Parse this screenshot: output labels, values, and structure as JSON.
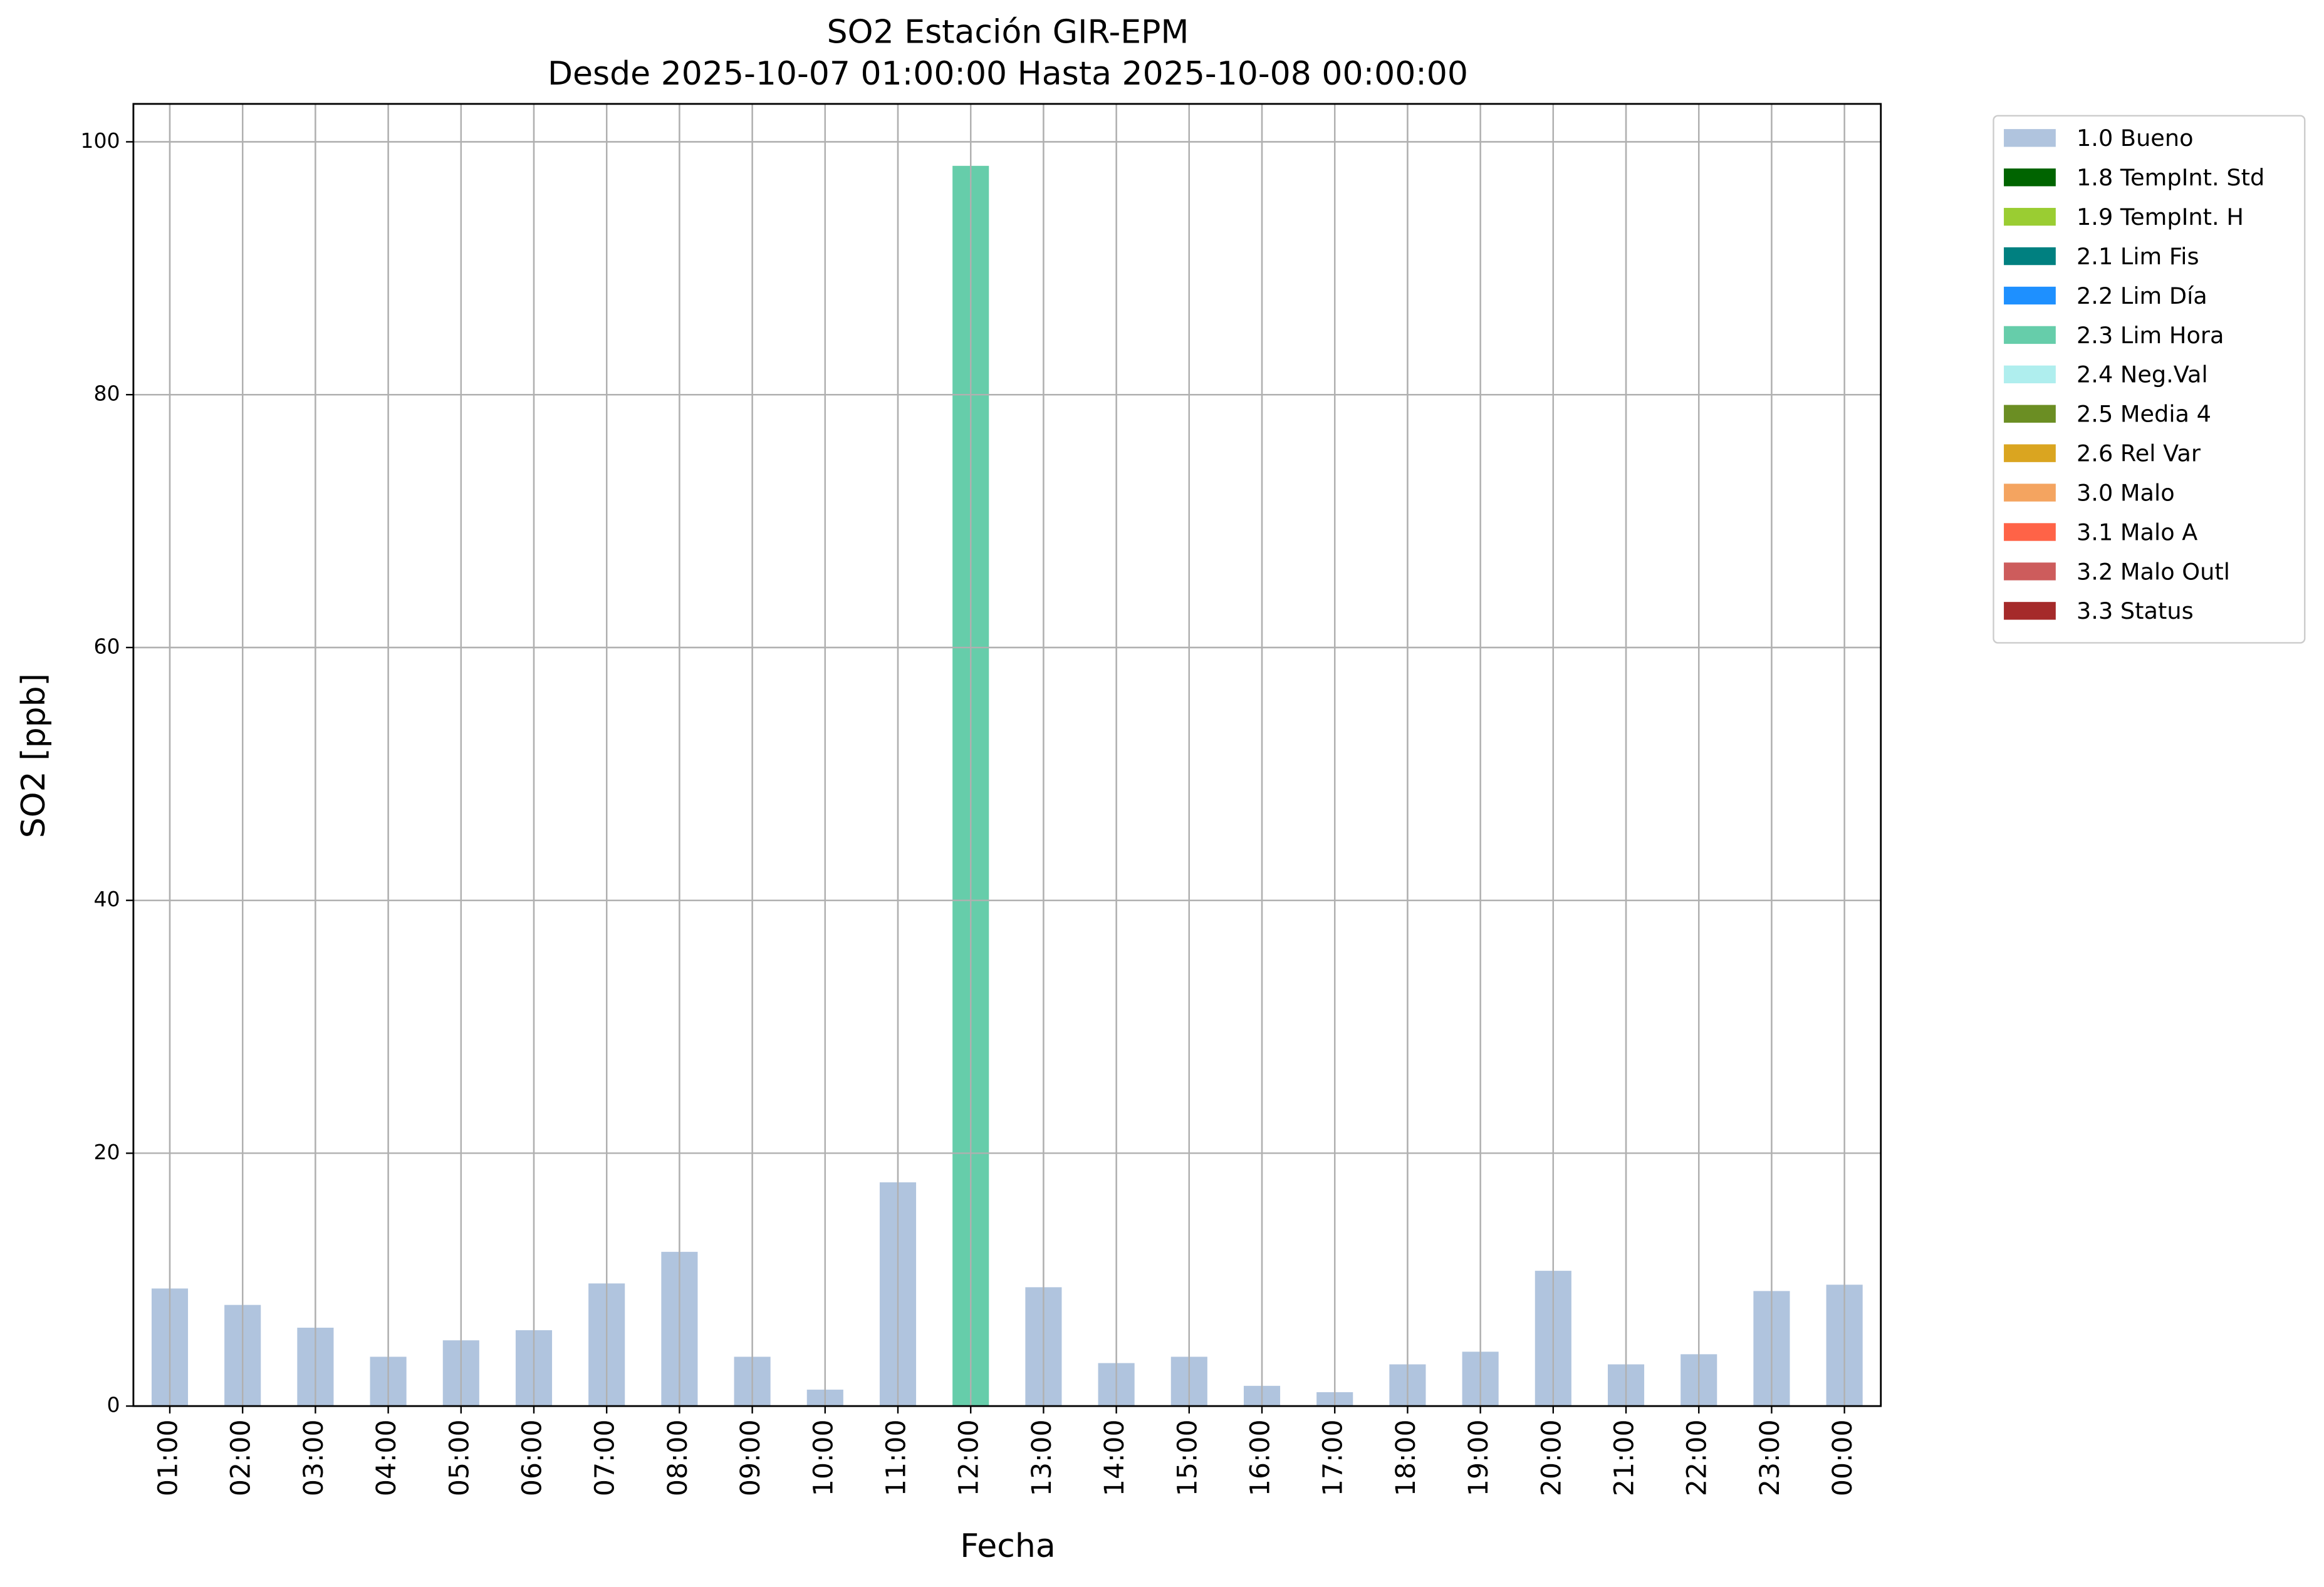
{
  "chart_data": {
    "type": "stacked_bar",
    "title": "SO2 Estación GIR-EPM",
    "subtitle": "Desde 2025-10-07 01:00:00 Hasta 2025-10-08 00:00:00",
    "x_label": "Fecha",
    "y_label": "SO2 [ppb]",
    "categories": [
      "01:00",
      "02:00",
      "03:00",
      "04:00",
      "05:00",
      "06:00",
      "07:00",
      "08:00",
      "09:00",
      "10:00",
      "11:00",
      "12:00",
      "13:00",
      "14:00",
      "15:00",
      "16:00",
      "17:00",
      "18:00",
      "19:00",
      "20:00",
      "21:00",
      "22:00",
      "23:00",
      "00:00"
    ],
    "series": [
      {
        "name": "1.0 Bueno",
        "color": "#b0c4de",
        "values": [
          9.3,
          8.0,
          6.2,
          3.9,
          5.2,
          6.0,
          9.7,
          12.2,
          3.9,
          1.3,
          17.7,
          null,
          9.4,
          3.4,
          3.9,
          1.6,
          1.1,
          3.3,
          4.3,
          10.7,
          3.3,
          4.1,
          9.1,
          9.6
        ]
      },
      {
        "name": "1.8 TempInt. Std",
        "color": "#006400",
        "values": [
          null,
          null,
          null,
          null,
          null,
          null,
          null,
          null,
          null,
          null,
          null,
          null,
          null,
          null,
          null,
          null,
          null,
          null,
          null,
          null,
          null,
          null,
          null,
          null
        ]
      },
      {
        "name": "1.9 TempInt. H",
        "color": "#9acd32",
        "values": [
          null,
          null,
          null,
          null,
          null,
          null,
          null,
          null,
          null,
          null,
          null,
          null,
          null,
          null,
          null,
          null,
          null,
          null,
          null,
          null,
          null,
          null,
          null,
          null
        ]
      },
      {
        "name": "2.1 Lim Fis",
        "color": "#008080",
        "values": [
          null,
          null,
          null,
          null,
          null,
          null,
          null,
          null,
          null,
          null,
          null,
          null,
          null,
          null,
          null,
          null,
          null,
          null,
          null,
          null,
          null,
          null,
          null,
          null
        ]
      },
      {
        "name": "2.2 Lim Día",
        "color": "#1e90ff",
        "values": [
          null,
          null,
          null,
          null,
          null,
          null,
          null,
          null,
          null,
          null,
          null,
          null,
          null,
          null,
          null,
          null,
          null,
          null,
          null,
          null,
          null,
          null,
          null,
          null
        ]
      },
      {
        "name": "2.3 Lim Hora",
        "color": "#66cdaa",
        "values": [
          null,
          null,
          null,
          null,
          null,
          null,
          null,
          null,
          null,
          null,
          null,
          98.1,
          null,
          null,
          null,
          null,
          null,
          null,
          null,
          null,
          null,
          null,
          null,
          null
        ]
      },
      {
        "name": "2.4 Neg.Val",
        "color": "#afeeee",
        "values": [
          null,
          null,
          null,
          null,
          null,
          null,
          null,
          null,
          null,
          null,
          null,
          null,
          null,
          null,
          null,
          null,
          null,
          null,
          null,
          null,
          null,
          null,
          null,
          null
        ]
      },
      {
        "name": "2.5 Media 4",
        "color": "#6b8e23",
        "values": [
          null,
          null,
          null,
          null,
          null,
          null,
          null,
          null,
          null,
          null,
          null,
          null,
          null,
          null,
          null,
          null,
          null,
          null,
          null,
          null,
          null,
          null,
          null,
          null
        ]
      },
      {
        "name": "2.6 Rel Var",
        "color": "#daa520",
        "values": [
          null,
          null,
          null,
          null,
          null,
          null,
          null,
          null,
          null,
          null,
          null,
          null,
          null,
          null,
          null,
          null,
          null,
          null,
          null,
          null,
          null,
          null,
          null,
          null
        ]
      },
      {
        "name": "3.0 Malo",
        "color": "#f4a460",
        "values": [
          null,
          null,
          null,
          null,
          null,
          null,
          null,
          null,
          null,
          null,
          null,
          null,
          null,
          null,
          null,
          null,
          null,
          null,
          null,
          null,
          null,
          null,
          null,
          null
        ]
      },
      {
        "name": "3.1 Malo A",
        "color": "#ff6347",
        "values": [
          null,
          null,
          null,
          null,
          null,
          null,
          null,
          null,
          null,
          null,
          null,
          null,
          null,
          null,
          null,
          null,
          null,
          null,
          null,
          null,
          null,
          null,
          null,
          null
        ]
      },
      {
        "name": "3.2 Malo Outl",
        "color": "#cd5c5c",
        "values": [
          null,
          null,
          null,
          null,
          null,
          null,
          null,
          null,
          null,
          null,
          null,
          null,
          null,
          null,
          null,
          null,
          null,
          null,
          null,
          null,
          null,
          null,
          null,
          null
        ]
      },
      {
        "name": "3.3 Status",
        "color": "#a52a2a",
        "values": [
          null,
          null,
          null,
          null,
          null,
          null,
          null,
          null,
          null,
          null,
          null,
          null,
          null,
          null,
          null,
          null,
          null,
          null,
          null,
          null,
          null,
          null,
          null,
          null
        ]
      }
    ],
    "ylim": [
      0,
      103
    ],
    "yticks": [
      0,
      20,
      40,
      60,
      80,
      100
    ],
    "grid": true,
    "legend": "outside-upper-right"
  }
}
